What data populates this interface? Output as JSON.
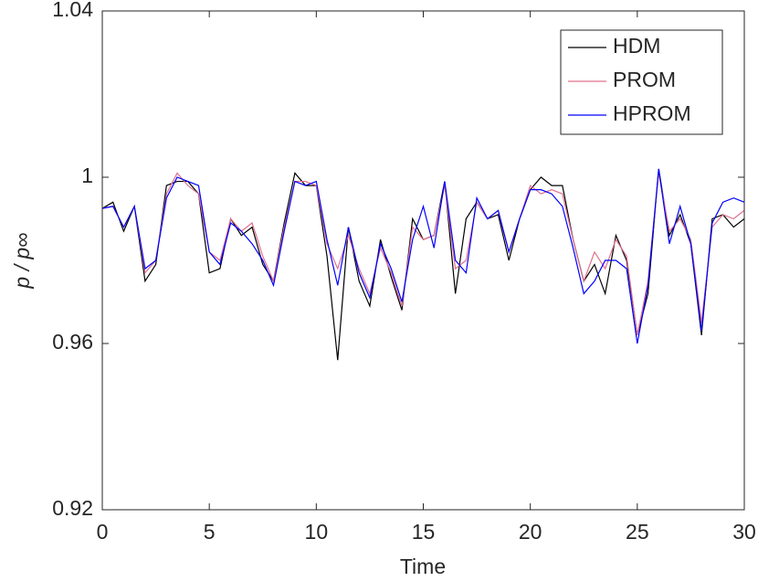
{
  "chart_data": {
    "type": "line",
    "xlabel": "Time",
    "ylabel": "p / p∞",
    "x": [
      0,
      0.5,
      1,
      1.5,
      2,
      2.5,
      3,
      3.5,
      4,
      4.5,
      5,
      5.5,
      6,
      6.5,
      7,
      7.5,
      8,
      8.5,
      9,
      9.5,
      10,
      10.5,
      11,
      11.5,
      12,
      12.5,
      13,
      13.5,
      14,
      14.5,
      15,
      15.5,
      16,
      16.5,
      17,
      17.5,
      18,
      18.5,
      19,
      19.5,
      20,
      20.5,
      21,
      21.5,
      22,
      22.5,
      23,
      23.5,
      24,
      24.5,
      25,
      25.5,
      26,
      26.5,
      27,
      27.5,
      28,
      28.5,
      29,
      29.5,
      30
    ],
    "series": [
      {
        "name": "HDM",
        "color": "#000000",
        "values": [
          0.9925,
          0.994,
          0.987,
          0.993,
          0.975,
          0.979,
          0.998,
          0.999,
          0.999,
          0.996,
          0.977,
          0.978,
          0.99,
          0.986,
          0.988,
          0.979,
          0.975,
          0.989,
          1.001,
          0.998,
          0.998,
          0.981,
          0.956,
          0.988,
          0.975,
          0.969,
          0.985,
          0.976,
          0.968,
          0.99,
          0.985,
          0.986,
          0.999,
          0.972,
          0.99,
          0.994,
          0.99,
          0.991,
          0.98,
          0.99,
          0.997,
          1.0,
          0.998,
          0.998,
          0.985,
          0.975,
          0.979,
          0.972,
          0.986,
          0.98,
          0.962,
          0.972,
          1.002,
          0.986,
          0.991,
          0.984,
          0.962,
          0.99,
          0.991,
          0.988,
          0.99
        ]
      },
      {
        "name": "PROM",
        "color": "#e0708c",
        "values": [
          0.9925,
          0.993,
          0.988,
          0.993,
          0.977,
          0.98,
          0.996,
          1.001,
          0.998,
          0.996,
          0.982,
          0.98,
          0.99,
          0.987,
          0.989,
          0.981,
          0.975,
          0.988,
          0.999,
          0.999,
          0.998,
          0.984,
          0.978,
          0.986,
          0.978,
          0.972,
          0.983,
          0.977,
          0.969,
          0.988,
          0.985,
          0.986,
          0.998,
          0.978,
          0.98,
          0.994,
          0.99,
          0.992,
          0.982,
          0.99,
          0.998,
          0.996,
          0.997,
          0.996,
          0.985,
          0.975,
          0.982,
          0.978,
          0.985,
          0.981,
          0.962,
          0.975,
          1.001,
          0.987,
          0.99,
          0.985,
          0.965,
          0.988,
          0.991,
          0.99,
          0.992
        ]
      },
      {
        "name": "HPROM",
        "color": "#0000ff",
        "values": [
          0.9925,
          0.993,
          0.988,
          0.993,
          0.978,
          0.98,
          0.995,
          1.0,
          0.999,
          0.998,
          0.982,
          0.979,
          0.989,
          0.987,
          0.984,
          0.98,
          0.974,
          0.987,
          0.999,
          0.998,
          0.999,
          0.985,
          0.974,
          0.988,
          0.977,
          0.971,
          0.984,
          0.978,
          0.97,
          0.985,
          0.993,
          0.983,
          0.999,
          0.98,
          0.977,
          0.995,
          0.99,
          0.992,
          0.982,
          0.99,
          0.997,
          0.997,
          0.996,
          0.993,
          0.983,
          0.972,
          0.975,
          0.98,
          0.98,
          0.978,
          0.96,
          0.974,
          1.002,
          0.984,
          0.993,
          0.984,
          0.963,
          0.989,
          0.994,
          0.995,
          0.994
        ]
      }
    ],
    "xlim": [
      0,
      30
    ],
    "xticks": [
      0,
      5,
      10,
      15,
      20,
      25,
      30
    ],
    "ylim": [
      0.92,
      1.04
    ],
    "yticks": [
      0.92,
      0.96,
      1,
      1.04
    ],
    "legend": "top-right"
  }
}
